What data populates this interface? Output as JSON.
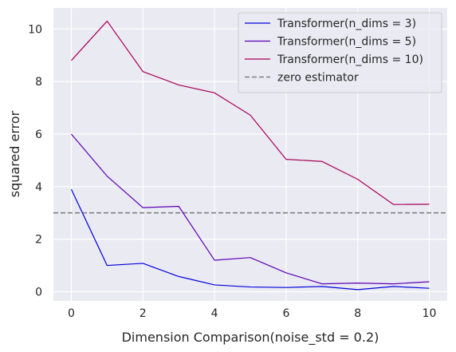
{
  "chart_data": {
    "type": "line",
    "title": "",
    "xlabel": "Dimension Comparison(noise_std = 0.2)",
    "ylabel": "squared error",
    "xlim": [
      -0.5,
      10.5
    ],
    "ylim": [
      -0.35,
      10.8
    ],
    "xticks": [
      0,
      2,
      4,
      6,
      8,
      10
    ],
    "yticks": [
      0,
      2,
      4,
      6,
      8,
      10
    ],
    "grid": true,
    "background": "#eaeaf2",
    "grid_color": "#ffffff",
    "legend_position": "top-right",
    "x": [
      0,
      1,
      2,
      3,
      4,
      5,
      6,
      7,
      8,
      9,
      10
    ],
    "series": [
      {
        "name": "Transformer(n_dims = 3)",
        "color": "#0000dd",
        "values": [
          3.9,
          1.0,
          1.08,
          0.58,
          0.26,
          0.18,
          0.16,
          0.2,
          0.08,
          0.2,
          0.13
        ]
      },
      {
        "name": "Transformer(n_dims = 5)",
        "color": "#5b00b5",
        "values": [
          6.0,
          4.4,
          3.2,
          3.25,
          1.2,
          1.3,
          0.72,
          0.3,
          0.33,
          0.3,
          0.38
        ]
      },
      {
        "name": "Transformer(n_dims = 10)",
        "color": "#a8005c",
        "values": [
          8.8,
          10.3,
          8.38,
          7.87,
          7.57,
          6.72,
          5.04,
          4.96,
          4.28,
          3.32,
          3.33
        ]
      }
    ],
    "reference_lines": [
      {
        "name": "zero estimator",
        "y": 3.0,
        "color": "#808080",
        "style": "dashed"
      }
    ]
  }
}
